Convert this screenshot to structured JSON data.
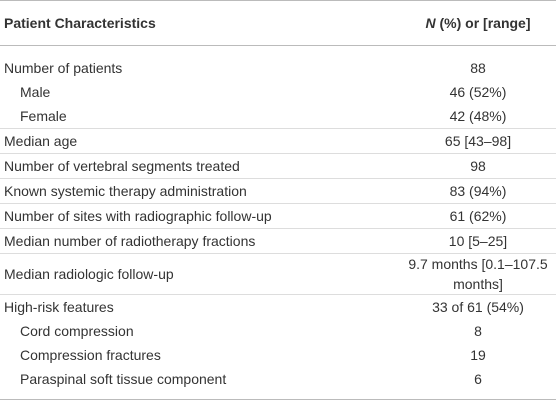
{
  "table": {
    "header": [
      "Patient Characteristics",
      {
        "italic": "N",
        "rest": "(%) or [range]"
      }
    ],
    "rows": [
      {
        "label": "Number of patients",
        "value": "88",
        "indent": false
      },
      {
        "label": "Male",
        "value": "46 (52%)",
        "indent": true
      },
      {
        "label": "Female",
        "value": "42 (48%)",
        "indent": true
      },
      {
        "label": "Median age",
        "value": "65 [43–98]",
        "indent": false
      },
      {
        "label": "Number of vertebral segments treated",
        "value": "98",
        "indent": false
      },
      {
        "label": "Known systemic therapy administration",
        "value": "83 (94%)",
        "indent": false
      },
      {
        "label": "Number of sites with radiographic follow-up",
        "value": "61 (62%)",
        "indent": false
      },
      {
        "label": "Median number of radiotherapy fractions",
        "value": "10 [5–25]",
        "indent": false
      },
      {
        "label": "Median radiologic follow-up",
        "value": "9.7 months [0.1–107.5 months]",
        "indent": false
      },
      {
        "label": "High-risk features",
        "value": "33 of 61 (54%)",
        "indent": false
      },
      {
        "label": "Cord compression",
        "value": "8",
        "indent": true
      },
      {
        "label": "Compression fractures",
        "value": "19",
        "indent": true
      },
      {
        "label": "Paraspinal soft tissue component",
        "value": "6",
        "indent": true
      }
    ]
  }
}
